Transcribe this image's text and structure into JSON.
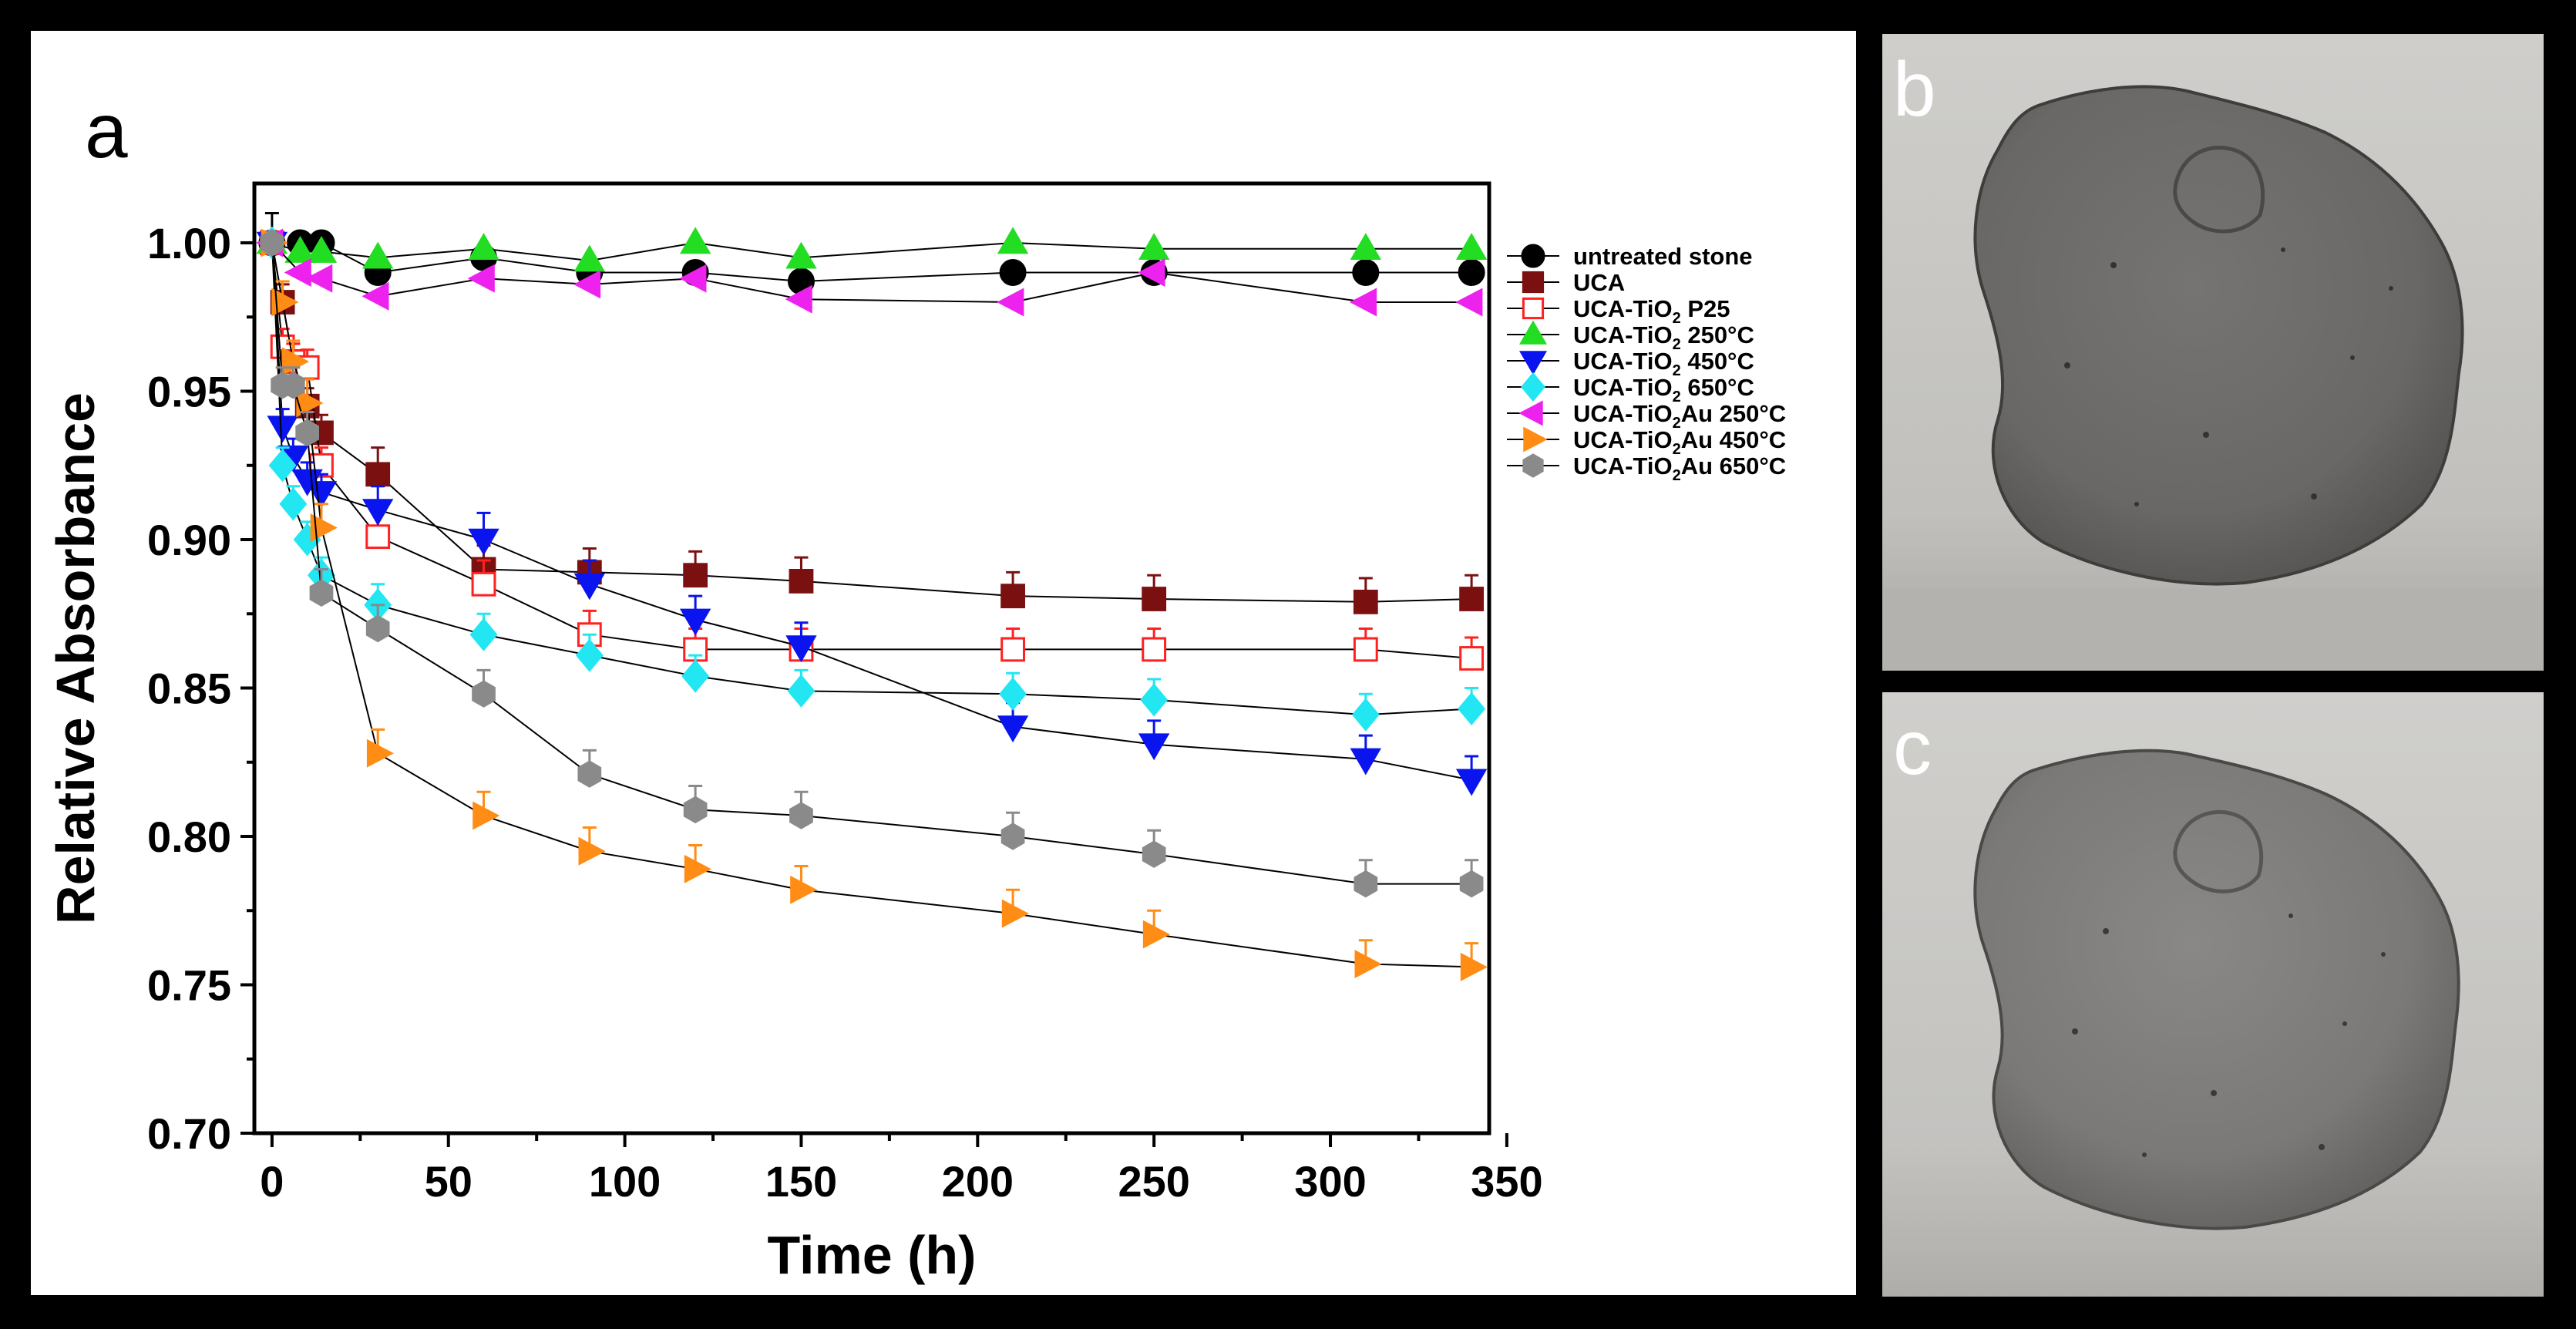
{
  "panels": {
    "a": "a",
    "b": "b",
    "c": "c"
  },
  "chart_data": {
    "type": "scatter",
    "title": "",
    "xlabel": "Time (h)",
    "ylabel": "Relative Absorbance",
    "xlim": [
      -5,
      345
    ],
    "ylim": [
      0.7,
      1.02
    ],
    "xticks": [
      0,
      50,
      100,
      150,
      200,
      250,
      300,
      350
    ],
    "xtick_labels": [
      "0",
      "50",
      "100",
      "150",
      "200",
      "250",
      "300",
      "350"
    ],
    "yticks": [
      0.7,
      0.75,
      0.8,
      0.85,
      0.9,
      0.95,
      1.0
    ],
    "ytick_labels": [
      "0.70",
      "0.75",
      "0.80",
      "0.85",
      "0.90",
      "0.95",
      "1.00"
    ],
    "legend_position": "right",
    "series": [
      {
        "name": "untreated stone",
        "label": {
          "pre": "untreated stone",
          "sub": "",
          "post": ""
        },
        "marker": "circle",
        "color": "#000000",
        "filled": true,
        "x": [
          0,
          8,
          14,
          30,
          60,
          90,
          120,
          150,
          210,
          250,
          310,
          340
        ],
        "y": [
          1.0,
          1.0,
          1.0,
          0.99,
          0.995,
          0.99,
          0.99,
          0.987,
          0.99,
          0.99,
          0.99,
          0.99
        ],
        "err": [
          0.01,
          0,
          0,
          0,
          0,
          0,
          0,
          0,
          0,
          0,
          0,
          0
        ]
      },
      {
        "name": "UCA",
        "label": {
          "pre": "UCA",
          "sub": "",
          "post": ""
        },
        "marker": "square",
        "color": "#7b1010",
        "filled": true,
        "x": [
          0,
          3,
          6,
          10,
          14,
          30,
          60,
          90,
          120,
          150,
          210,
          250,
          310,
          340
        ],
        "y": [
          1.0,
          0.98,
          0.96,
          0.945,
          0.936,
          0.922,
          0.89,
          0.889,
          0.888,
          0.886,
          0.881,
          0.88,
          0.879,
          0.88
        ],
        "err": [
          0,
          0.006,
          0.006,
          0.006,
          0.006,
          0.009,
          0.008,
          0.008,
          0.008,
          0.008,
          0.008,
          0.008,
          0.008,
          0.008
        ]
      },
      {
        "name": "UCA-TiO2 P25",
        "label": {
          "pre": "UCA-TiO",
          "sub": "2",
          "post": " P25"
        },
        "marker": "square",
        "color": "#ff2020",
        "filled": false,
        "x": [
          0,
          3,
          6,
          10,
          14,
          30,
          60,
          90,
          120,
          150,
          210,
          250,
          310,
          340
        ],
        "y": [
          1.0,
          0.965,
          0.96,
          0.958,
          0.925,
          0.901,
          0.885,
          0.868,
          0.863,
          0.863,
          0.863,
          0.863,
          0.863,
          0.86
        ],
        "err": [
          0,
          0.006,
          0.006,
          0.006,
          0.006,
          0.008,
          0.008,
          0.008,
          0.007,
          0.007,
          0.007,
          0.007,
          0.007,
          0.007
        ]
      },
      {
        "name": "UCA-TiO2 250°C",
        "label": {
          "pre": "UCA-TiO",
          "sub": "2",
          "post": " 250°C"
        },
        "marker": "triangle-up",
        "color": "#22dd22",
        "filled": true,
        "x": [
          0,
          8,
          14,
          30,
          60,
          90,
          120,
          150,
          210,
          250,
          310,
          340
        ],
        "y": [
          1.0,
          0.997,
          0.997,
          0.995,
          0.998,
          0.994,
          1.0,
          0.995,
          1.0,
          0.998,
          0.998,
          0.998
        ],
        "err": [
          0,
          0,
          0,
          0,
          0,
          0,
          0,
          0,
          0,
          0,
          0,
          0
        ]
      },
      {
        "name": "UCA-TiO2 450°C",
        "label": {
          "pre": "UCA-TiO",
          "sub": "2",
          "post": " 450°C"
        },
        "marker": "triangle-down",
        "color": "#0a14ee",
        "filled": true,
        "x": [
          0,
          3,
          6,
          10,
          14,
          30,
          60,
          90,
          120,
          150,
          210,
          250,
          310,
          340
        ],
        "y": [
          1.0,
          0.938,
          0.928,
          0.92,
          0.916,
          0.91,
          0.9,
          0.885,
          0.873,
          0.864,
          0.837,
          0.831,
          0.826,
          0.819
        ],
        "err": [
          0,
          0.006,
          0.006,
          0.006,
          0.006,
          0.008,
          0.009,
          0.008,
          0.008,
          0.008,
          0.008,
          0.008,
          0.008,
          0.008
        ]
      },
      {
        "name": "UCA-TiO2 650°C",
        "label": {
          "pre": "UCA-TiO",
          "sub": "2",
          "post": " 650°C"
        },
        "marker": "diamond",
        "color": "#22e6f2",
        "filled": true,
        "x": [
          0,
          3,
          6,
          10,
          14,
          30,
          60,
          90,
          120,
          150,
          210,
          250,
          310,
          340
        ],
        "y": [
          1.0,
          0.925,
          0.912,
          0.9,
          0.888,
          0.878,
          0.868,
          0.861,
          0.854,
          0.849,
          0.848,
          0.846,
          0.841,
          0.843
        ],
        "err": [
          0,
          0.006,
          0.006,
          0.006,
          0.006,
          0.007,
          0.007,
          0.007,
          0.007,
          0.007,
          0.007,
          0.007,
          0.007,
          0.007
        ]
      },
      {
        "name": "UCA-TiO2Au 250°C",
        "label": {
          "pre": "UCA-TiO",
          "sub": "2",
          "post": "Au 250°C"
        },
        "marker": "triangle-left",
        "color": "#ee22ee",
        "filled": true,
        "x": [
          0,
          8,
          14,
          30,
          60,
          90,
          120,
          150,
          210,
          250,
          310,
          340
        ],
        "y": [
          1.0,
          0.99,
          0.988,
          0.982,
          0.988,
          0.986,
          0.988,
          0.981,
          0.98,
          0.99,
          0.98,
          0.98
        ],
        "err": [
          0,
          0,
          0,
          0,
          0,
          0,
          0,
          0,
          0,
          0,
          0,
          0
        ]
      },
      {
        "name": "UCA-TiO2Au 450°C",
        "label": {
          "pre": "UCA-TiO",
          "sub": "2",
          "post": "Au 450°C"
        },
        "marker": "triangle-right",
        "color": "#ff8c14",
        "filled": true,
        "x": [
          0,
          3,
          6,
          10,
          14,
          30,
          60,
          90,
          120,
          150,
          210,
          250,
          310,
          340
        ],
        "y": [
          1.0,
          0.98,
          0.96,
          0.946,
          0.904,
          0.828,
          0.807,
          0.795,
          0.789,
          0.782,
          0.774,
          0.767,
          0.757,
          0.756
        ],
        "err": [
          0,
          0.007,
          0.007,
          0.008,
          0.008,
          0.008,
          0.008,
          0.008,
          0.008,
          0.008,
          0.008,
          0.008,
          0.008,
          0.008
        ]
      },
      {
        "name": "UCA-TiO2Au 650°C",
        "label": {
          "pre": "UCA-TiO",
          "sub": "2",
          "post": "Au 650°C"
        },
        "marker": "hexagon",
        "color": "#8a8a8a",
        "filled": true,
        "x": [
          0,
          3,
          6,
          10,
          14,
          30,
          60,
          90,
          120,
          150,
          210,
          250,
          310,
          340
        ],
        "y": [
          1.0,
          0.952,
          0.952,
          0.936,
          0.882,
          0.87,
          0.848,
          0.821,
          0.809,
          0.807,
          0.8,
          0.794,
          0.784,
          0.784
        ],
        "err": [
          0,
          0.006,
          0.006,
          0.007,
          0.008,
          0.008,
          0.008,
          0.008,
          0.008,
          0.008,
          0.008,
          0.008,
          0.008,
          0.008
        ]
      }
    ]
  }
}
